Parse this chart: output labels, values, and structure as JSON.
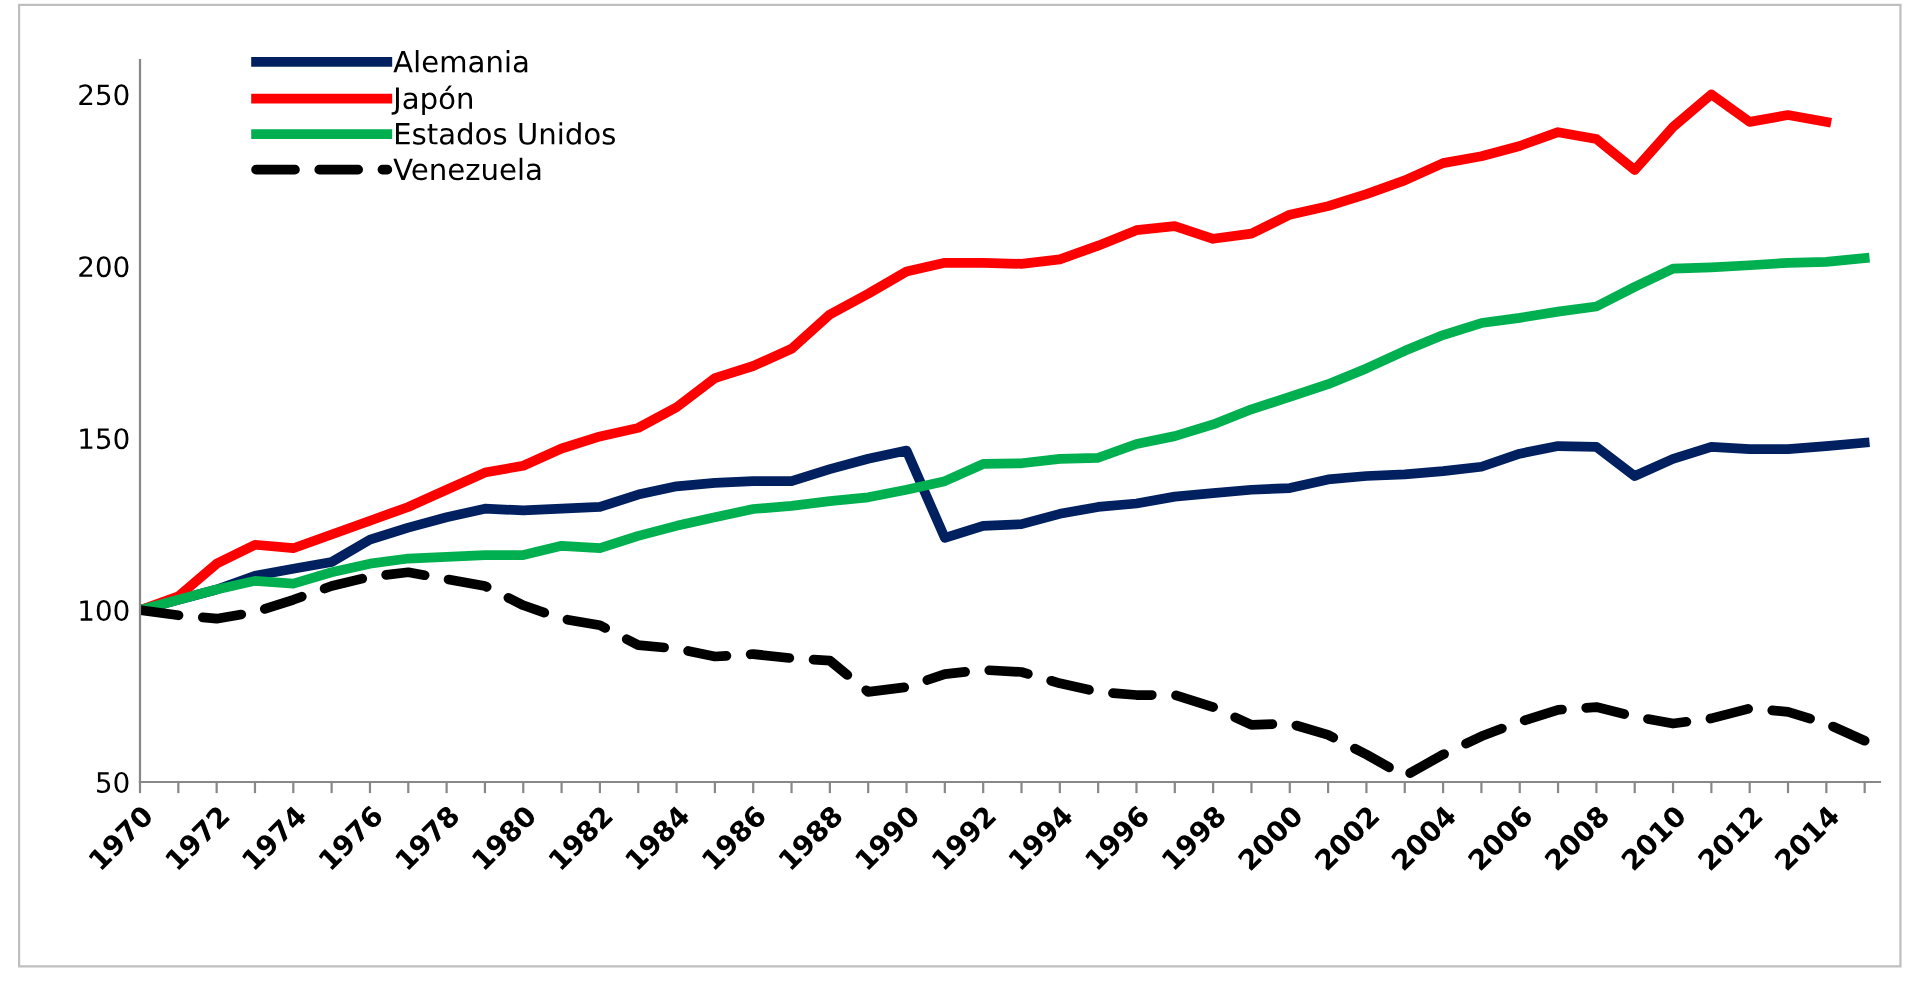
{
  "chart_data": {
    "type": "line",
    "categories": [
      "1970",
      null,
      "1972",
      null,
      "1974",
      null,
      "1976",
      null,
      "1978",
      null,
      "1980",
      null,
      "1982",
      null,
      "1984",
      null,
      "1986",
      null,
      "1988",
      null,
      "1990",
      null,
      "1992",
      null,
      "1994",
      null,
      "1996",
      null,
      "1998",
      null,
      "2000",
      null,
      "2002",
      null,
      "2004",
      null,
      "2006",
      null,
      "2008",
      null,
      "2010",
      null,
      "2012",
      null,
      "2014",
      null
    ],
    "series": [
      {
        "name": "Alemania",
        "color": "#002060",
        "values": [
          100,
          103,
          106,
          110,
          112,
          114,
          120.5,
          124,
          127,
          129.5,
          129,
          129.5,
          130,
          133.6,
          136,
          137,
          137.5,
          137.5,
          141,
          144,
          146.4,
          121,
          124.5,
          125,
          128,
          130,
          131,
          133,
          134,
          135,
          135.5,
          138,
          139,
          139.5,
          140.4,
          141.7,
          145.5,
          147.7,
          147.5,
          139,
          144,
          147.5,
          146.8,
          146.8,
          147.7,
          148.7
        ]
      },
      {
        "name": "Japón",
        "color": "#ff0000",
        "values": [
          100,
          104,
          113.5,
          119,
          118,
          122,
          126,
          130,
          135,
          140,
          142,
          147,
          150.5,
          153,
          159,
          167.5,
          171,
          176,
          186,
          192,
          198.5,
          201,
          201,
          200.7,
          202,
          206,
          210.5,
          211.7,
          208,
          209.5,
          215,
          217.5,
          221,
          225,
          230,
          232,
          235,
          239,
          237,
          228,
          240.5,
          250,
          242,
          244,
          242,
          null
        ]
      },
      {
        "name": "Estados Unidos",
        "color": "#00b050",
        "values": [
          100,
          103,
          106,
          108.5,
          107.7,
          111,
          113.5,
          115,
          115.5,
          116,
          116,
          118.7,
          118,
          121.6,
          124.5,
          127,
          129.4,
          130.3,
          131.7,
          132.8,
          135,
          137.5,
          142.5,
          142.7,
          144,
          144.3,
          148.3,
          150.6,
          154,
          158.4,
          162,
          165.7,
          170.3,
          175.4,
          180,
          183.5,
          185,
          186.8,
          188.3,
          194,
          199.3,
          199.7,
          200.3,
          201,
          201.3,
          202.4
        ]
      },
      {
        "name": "Venezuela",
        "color": "#000000",
        "line_style": "dashed",
        "values": [
          100,
          98.5,
          97.5,
          99.4,
          103,
          107,
          109.7,
          111,
          109,
          107,
          101.4,
          97.5,
          95.6,
          89.8,
          88.8,
          86.5,
          87.2,
          86,
          85.3,
          76.2,
          77.6,
          81.4,
          82.6,
          82,
          78.7,
          76.2,
          75.3,
          75.3,
          71.8,
          66.6,
          67,
          63.7,
          58,
          51.7,
          58,
          63.3,
          67.5,
          71,
          71.8,
          69,
          67,
          68.5,
          71.4,
          70.4,
          67,
          62
        ]
      }
    ],
    "ylim": [
      50,
      260
    ],
    "yticks": [
      50,
      100,
      150,
      200,
      250
    ],
    "grid": false,
    "legend": "top left"
  }
}
